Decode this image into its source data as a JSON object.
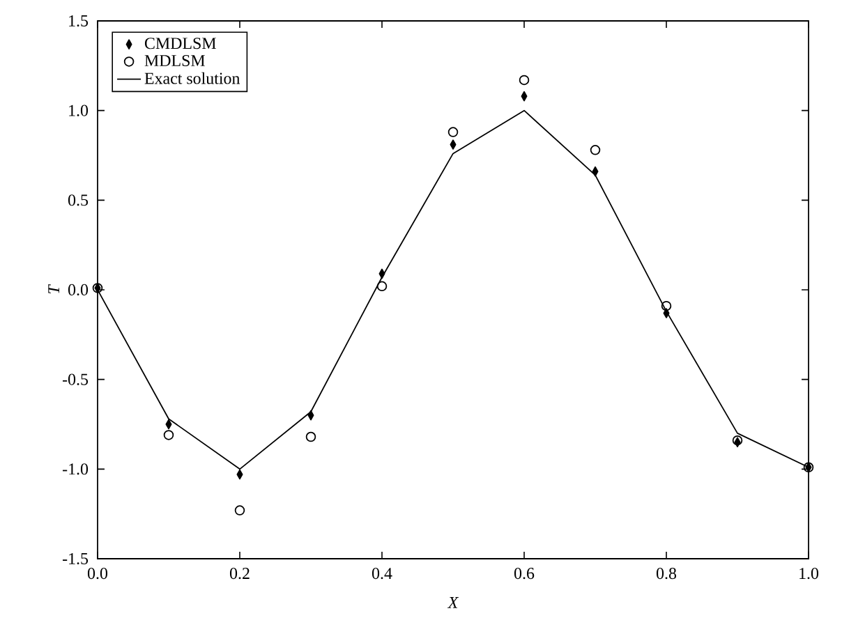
{
  "chart_data": {
    "type": "scatter",
    "xlabel": "X",
    "ylabel": "T",
    "x": [
      0.0,
      0.1,
      0.2,
      0.3,
      0.4,
      0.5,
      0.6,
      0.7,
      0.8,
      0.9,
      1.0
    ],
    "series": [
      {
        "name": "CMDLSM",
        "type": "scatter",
        "marker": "diamond",
        "color": "#000000",
        "values": [
          0.01,
          -0.75,
          -1.03,
          -0.7,
          0.09,
          0.81,
          1.08,
          0.66,
          -0.13,
          -0.85,
          -0.99
        ]
      },
      {
        "name": "MDLSM",
        "type": "scatter",
        "marker": "circle",
        "color": "#000000",
        "values": [
          0.01,
          -0.81,
          -1.23,
          -0.82,
          0.02,
          0.88,
          1.17,
          0.78,
          -0.09,
          -0.84,
          -0.99
        ]
      },
      {
        "name": "Exact solution",
        "type": "line",
        "marker": "none",
        "line_style": "solid",
        "color": "#000000",
        "values": [
          0.0,
          -0.72,
          -1.0,
          -0.68,
          0.07,
          0.76,
          1.0,
          0.64,
          -0.12,
          -0.8,
          -0.99
        ]
      }
    ],
    "xlim": [
      0.0,
      1.0
    ],
    "ylim": [
      -1.5,
      1.5
    ],
    "xticks": [
      {
        "value": 0.0,
        "label": "0.0"
      },
      0.2,
      0.4,
      0.6,
      0.8,
      {
        "value": 1.0,
        "label": "1.0"
      }
    ],
    "yticks": [
      -1.5,
      {
        "value": -1.0,
        "label": "-1.0"
      },
      -0.5,
      {
        "value": 0.0,
        "label": "0.0"
      },
      0.5,
      {
        "value": 1.0,
        "label": "1.0"
      },
      1.5
    ],
    "legend": "top left",
    "grid": false
  }
}
